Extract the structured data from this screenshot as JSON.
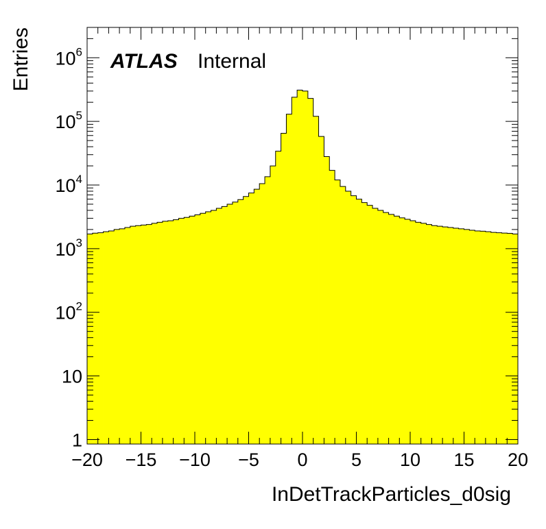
{
  "chart_data": {
    "type": "histogram",
    "xlabel": "InDetTrackParticles_d0sig",
    "ylabel": "Entries",
    "xlim": [
      -20,
      20
    ],
    "ylim": [
      0.85,
      3000000
    ],
    "yscale": "log",
    "fill_color": "#ffff00",
    "line_color": "#000000",
    "label_atlas": "ATLAS",
    "label_status": "Internal",
    "x_ticks": [
      {
        "value": -20,
        "label": "−20"
      },
      {
        "value": -15,
        "label": "−15"
      },
      {
        "value": -10,
        "label": "−10"
      },
      {
        "value": -5,
        "label": "−5"
      },
      {
        "value": 0,
        "label": "0"
      },
      {
        "value": 5,
        "label": "5"
      },
      {
        "value": 10,
        "label": "10"
      },
      {
        "value": 15,
        "label": "15"
      },
      {
        "value": 20,
        "label": "20"
      }
    ],
    "y_ticks": [
      {
        "value": 1,
        "base": "1",
        "exp": ""
      },
      {
        "value": 10,
        "base": "10",
        "exp": ""
      },
      {
        "value": 100,
        "base": "10",
        "exp": "2"
      },
      {
        "value": 1000,
        "base": "10",
        "exp": "3"
      },
      {
        "value": 10000,
        "base": "10",
        "exp": "4"
      },
      {
        "value": 100000,
        "base": "10",
        "exp": "5"
      },
      {
        "value": 1000000,
        "base": "10",
        "exp": "6"
      }
    ],
    "bin_width": 0.5,
    "bin_centers": [
      -19.75,
      -19.25,
      -18.75,
      -18.25,
      -17.75,
      -17.25,
      -16.75,
      -16.25,
      -15.75,
      -15.25,
      -14.75,
      -14.25,
      -13.75,
      -13.25,
      -12.75,
      -12.25,
      -11.75,
      -11.25,
      -10.75,
      -10.25,
      -9.75,
      -9.25,
      -8.75,
      -8.25,
      -7.75,
      -7.25,
      -6.75,
      -6.25,
      -5.75,
      -5.25,
      -4.75,
      -4.25,
      -3.75,
      -3.25,
      -2.75,
      -2.25,
      -1.75,
      -1.25,
      -0.75,
      -0.25,
      0.25,
      0.75,
      1.25,
      1.75,
      2.25,
      2.75,
      3.25,
      3.75,
      4.25,
      4.75,
      5.25,
      5.75,
      6.25,
      6.75,
      7.25,
      7.75,
      8.25,
      8.75,
      9.25,
      9.75,
      10.25,
      10.75,
      11.25,
      11.75,
      12.25,
      12.75,
      13.25,
      13.75,
      14.25,
      14.75,
      15.25,
      15.75,
      16.25,
      16.75,
      17.25,
      17.75,
      18.25,
      18.75,
      19.25,
      19.75
    ],
    "values": [
      1700,
      1750,
      1780,
      1850,
      1900,
      2000,
      2050,
      2150,
      2250,
      2300,
      2350,
      2400,
      2500,
      2600,
      2700,
      2750,
      2850,
      3000,
      3100,
      3250,
      3400,
      3600,
      3800,
      4000,
      4300,
      4600,
      5000,
      5400,
      5900,
      6600,
      7500,
      8600,
      10500,
      13500,
      20000,
      34000,
      65000,
      130000,
      240000,
      310000,
      300000,
      230000,
      120000,
      58000,
      28000,
      17000,
      12000,
      9500,
      8000,
      6800,
      6000,
      5300,
      4800,
      4300,
      4000,
      3700,
      3450,
      3250,
      3050,
      2900,
      2750,
      2600,
      2500,
      2400,
      2300,
      2250,
      2200,
      2150,
      2100,
      2050,
      2000,
      1950,
      1900,
      1880,
      1850,
      1800,
      1780,
      1760,
      1740,
      1700
    ]
  }
}
